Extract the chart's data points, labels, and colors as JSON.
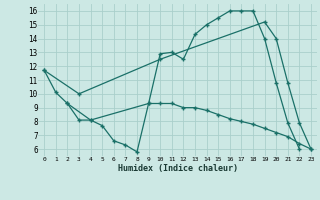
{
  "xlabel": "Humidex (Indice chaleur)",
  "bg_color": "#cce8e4",
  "grid_color": "#aacfcb",
  "line_color": "#1a7068",
  "xlim": [
    -0.5,
    23.5
  ],
  "ylim": [
    5.5,
    16.5
  ],
  "xticks": [
    0,
    1,
    2,
    3,
    4,
    5,
    6,
    7,
    8,
    9,
    10,
    11,
    12,
    13,
    14,
    15,
    16,
    17,
    18,
    19,
    20,
    21,
    22,
    23
  ],
  "yticks": [
    6,
    7,
    8,
    9,
    10,
    11,
    12,
    13,
    14,
    15,
    16
  ],
  "line1_x": [
    0,
    1,
    2,
    3,
    4,
    5,
    6,
    7,
    8,
    9,
    10,
    11,
    12,
    13,
    14,
    15,
    16,
    17,
    18,
    19,
    20,
    21,
    22
  ],
  "line1_y": [
    11.7,
    10.1,
    9.3,
    8.1,
    8.1,
    7.7,
    6.6,
    6.3,
    5.8,
    9.3,
    12.9,
    13.0,
    12.5,
    14.3,
    15.0,
    15.5,
    16.0,
    16.0,
    16.0,
    14.0,
    10.8,
    7.9,
    6.0
  ],
  "line2_x": [
    0,
    3,
    10,
    19,
    20,
    21,
    22,
    23
  ],
  "line2_y": [
    11.7,
    10.0,
    12.5,
    15.2,
    14.0,
    10.8,
    7.9,
    6.0
  ],
  "line3_x": [
    2,
    4,
    9,
    10,
    11,
    12,
    13,
    14,
    15,
    16,
    17,
    18,
    19,
    20,
    21,
    22,
    23
  ],
  "line3_y": [
    9.3,
    8.1,
    9.3,
    9.3,
    9.3,
    9.0,
    9.0,
    8.8,
    8.5,
    8.2,
    8.0,
    7.8,
    7.5,
    7.2,
    6.9,
    6.4,
    6.0
  ]
}
